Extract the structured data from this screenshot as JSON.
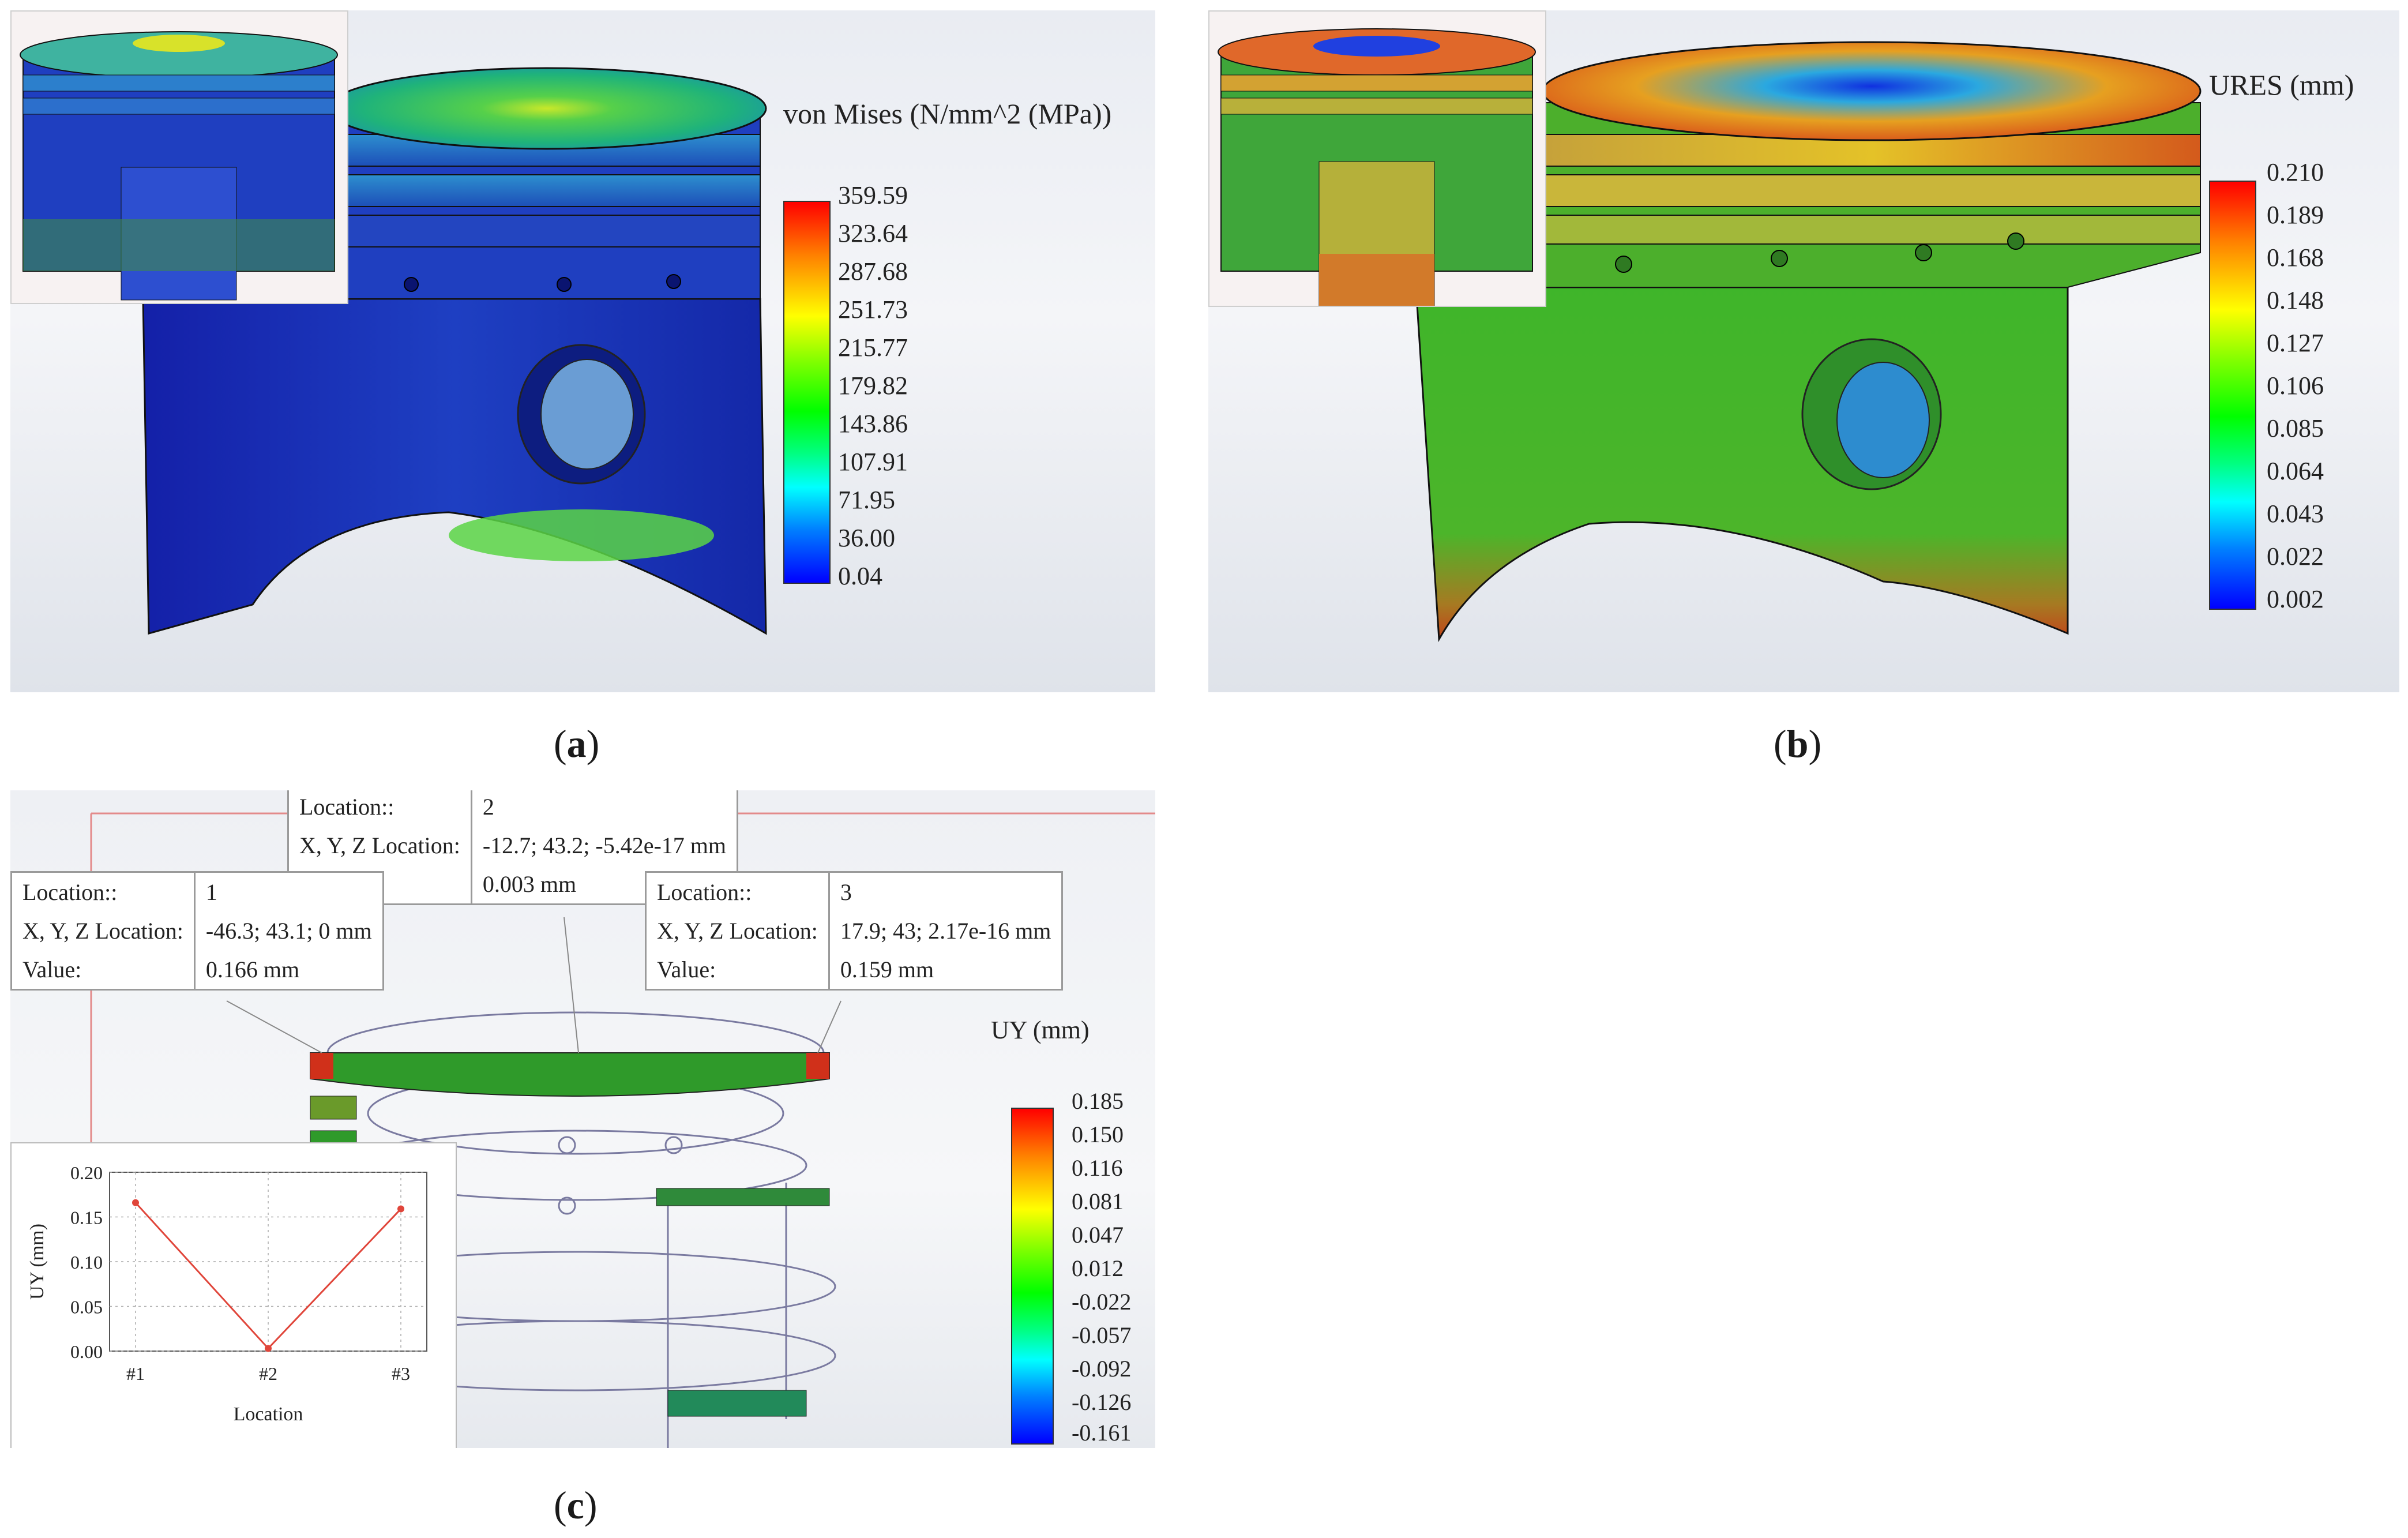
{
  "captions": {
    "a": "a",
    "b": "b",
    "c": "c"
  },
  "panel_a": {
    "legend_title": "von Mises (N/mm^2 (MPa))",
    "ticks": [
      "359.59",
      "323.64",
      "287.68",
      "251.73",
      "215.77",
      "179.82",
      "143.86",
      "107.91",
      "71.95",
      "36.00",
      "0.04"
    ]
  },
  "panel_b": {
    "legend_title": "URES (mm)",
    "ticks": [
      "0.210",
      "0.189",
      "0.168",
      "0.148",
      "0.127",
      "0.106",
      "0.085",
      "0.064",
      "0.043",
      "0.022",
      "0.002"
    ]
  },
  "panel_c": {
    "legend_title": "UY (mm)",
    "ticks": [
      "0.185",
      "0.150",
      "0.116",
      "0.081",
      "0.047",
      "0.012",
      "-0.022",
      "-0.057",
      "-0.092",
      "-0.126",
      "-0.161"
    ],
    "probes": [
      {
        "location_label": "Location::",
        "location": "2",
        "xyz_label": "X, Y, Z Location:",
        "xyz": "-12.7; 43.2; -5.42e-17 mm",
        "value_label": "Value:",
        "value": "0.003 mm"
      },
      {
        "location_label": "Location::",
        "location": "1",
        "xyz_label": "X, Y, Z Location:",
        "xyz": "-46.3; 43.1; 0 mm",
        "value_label": "Value:",
        "value": "0.166 mm"
      },
      {
        "location_label": "Location::",
        "location": "3",
        "xyz_label": "X, Y, Z Location:",
        "xyz": "17.9; 43; 2.17e-16 mm",
        "value_label": "Value:",
        "value": "0.159 mm"
      }
    ]
  },
  "chart_data": {
    "type": "line",
    "categories": [
      "#1",
      "#2",
      "#3"
    ],
    "series": [
      {
        "values": [
          0.166,
          0.003,
          0.159
        ]
      }
    ],
    "xlabel": "Location",
    "ylabel": "UY (mm)",
    "ylim": [
      0,
      0.2
    ],
    "yticks": [
      "0.20",
      "0.15",
      "0.10",
      "0.05",
      "0.00"
    ],
    "grid": true,
    "color": "#e0453a"
  }
}
